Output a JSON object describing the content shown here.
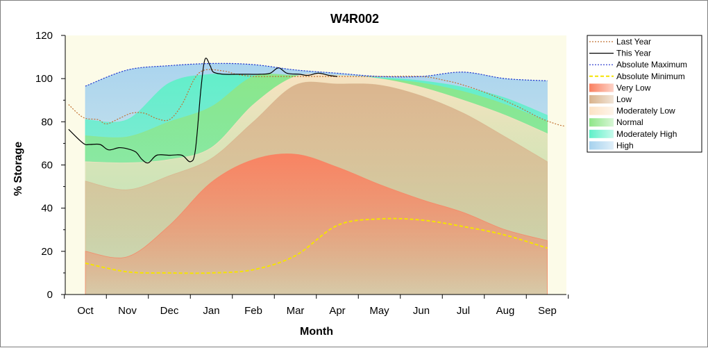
{
  "chart_data": {
    "type": "area",
    "title": "W4R002",
    "xlabel": "Month",
    "ylabel": "% Storage",
    "ylim": [
      0,
      120
    ],
    "yticks": [
      0,
      20,
      40,
      60,
      80,
      100,
      120
    ],
    "categories": [
      "Oct",
      "Nov",
      "Dec",
      "Jan",
      "Feb",
      "Mar",
      "Apr",
      "May",
      "Jun",
      "Jul",
      "Aug",
      "Sep"
    ],
    "grid": false,
    "legend_position": "right",
    "bands": [
      {
        "name": "Very Low",
        "color": "#fa8060",
        "lower": "zero",
        "upper": [
          [
            0,
            20
          ],
          [
            1,
            17.5
          ],
          [
            2,
            32
          ],
          [
            3,
            52
          ],
          [
            4,
            62.5
          ],
          [
            5,
            65
          ],
          [
            6,
            59
          ],
          [
            7,
            51
          ],
          [
            8,
            44
          ],
          [
            9,
            38
          ],
          [
            10,
            30
          ],
          [
            11,
            25
          ]
        ]
      },
      {
        "name": "Low",
        "color": "#d9b38c",
        "upper": [
          [
            0,
            52.5
          ],
          [
            1,
            48.5
          ],
          [
            2,
            55
          ],
          [
            3,
            63
          ],
          [
            4,
            80
          ],
          [
            5,
            97
          ],
          [
            6,
            97.5
          ],
          [
            7,
            97
          ],
          [
            8,
            92
          ],
          [
            9,
            84
          ],
          [
            10,
            73
          ],
          [
            11,
            61.5
          ]
        ]
      },
      {
        "name": "Moderately Low",
        "color": "#fde2c4",
        "upper": [
          [
            0,
            61.5
          ],
          [
            1,
            61
          ],
          [
            2,
            62.5
          ],
          [
            3,
            68
          ],
          [
            4,
            88
          ],
          [
            5,
            101
          ],
          [
            6,
            101.5
          ],
          [
            7,
            100
          ],
          [
            8,
            96
          ],
          [
            9,
            90
          ],
          [
            10,
            83
          ],
          [
            11,
            74.5
          ]
        ]
      },
      {
        "name": "Normal",
        "color": "#8ee688",
        "upper": [
          [
            0,
            73.5
          ],
          [
            1,
            73
          ],
          [
            2,
            80
          ],
          [
            3,
            87
          ],
          [
            4,
            101
          ],
          [
            5,
            101.5
          ],
          [
            6,
            101.5
          ],
          [
            7,
            100
          ],
          [
            8,
            98
          ],
          [
            9,
            94
          ],
          [
            10,
            88
          ],
          [
            11,
            80
          ]
        ]
      },
      {
        "name": "Moderately High",
        "color": "#5ff0c8",
        "upper": [
          [
            0,
            81
          ],
          [
            1,
            81
          ],
          [
            2,
            98
          ],
          [
            3,
            102
          ],
          [
            4,
            101.5
          ],
          [
            5,
            101.5
          ],
          [
            6,
            101.5
          ],
          [
            7,
            100.5
          ],
          [
            8,
            99
          ],
          [
            9,
            96
          ],
          [
            10,
            91
          ],
          [
            11,
            83
          ]
        ]
      },
      {
        "name": "High",
        "color": "#a6d2ee",
        "upper": [
          [
            0,
            96.5
          ],
          [
            1,
            104
          ],
          [
            2,
            106
          ],
          [
            3,
            107
          ],
          [
            4,
            106.5
          ],
          [
            5,
            104
          ],
          [
            6,
            102.5
          ],
          [
            7,
            101
          ],
          [
            8,
            101
          ],
          [
            9,
            103
          ],
          [
            10,
            100
          ],
          [
            11,
            99
          ]
        ]
      }
    ],
    "series": [
      {
        "name": "Last Year",
        "color": "#c07030",
        "style": "dotted",
        "points": [
          [
            -0.4,
            88
          ],
          [
            -0.05,
            82
          ],
          [
            0.3,
            81
          ],
          [
            0.5,
            79
          ],
          [
            0.8,
            81.5
          ],
          [
            1.1,
            84
          ],
          [
            1.4,
            84
          ],
          [
            1.7,
            81.5
          ],
          [
            2.0,
            81
          ],
          [
            2.3,
            88
          ],
          [
            2.6,
            100
          ],
          [
            2.85,
            104
          ],
          [
            3.3,
            103.5
          ],
          [
            3.6,
            102
          ],
          [
            4.0,
            101
          ],
          [
            4.5,
            101
          ],
          [
            5.0,
            101
          ],
          [
            5.5,
            101
          ],
          [
            6.0,
            101
          ],
          [
            7.0,
            101
          ],
          [
            8.0,
            101
          ],
          [
            8.6,
            99
          ],
          [
            9.0,
            97
          ],
          [
            9.6,
            93
          ],
          [
            10.3,
            87
          ],
          [
            10.8,
            82
          ],
          [
            11.2,
            79
          ],
          [
            11.4,
            78
          ]
        ]
      },
      {
        "name": "This Year",
        "color": "#000000",
        "style": "solid",
        "points": [
          [
            -0.4,
            76.5
          ],
          [
            -0.05,
            70
          ],
          [
            0.1,
            69.5
          ],
          [
            0.35,
            69.5
          ],
          [
            0.55,
            67
          ],
          [
            0.8,
            68
          ],
          [
            1.0,
            67.5
          ],
          [
            1.2,
            66
          ],
          [
            1.35,
            62.5
          ],
          [
            1.5,
            61
          ],
          [
            1.7,
            64.5
          ],
          [
            2.0,
            64.5
          ],
          [
            2.3,
            64.5
          ],
          [
            2.5,
            61.5
          ],
          [
            2.62,
            67
          ],
          [
            2.75,
            95
          ],
          [
            2.85,
            109
          ],
          [
            2.97,
            106
          ],
          [
            3.05,
            103
          ],
          [
            3.3,
            102
          ],
          [
            3.6,
            102
          ],
          [
            3.9,
            102
          ],
          [
            4.15,
            102
          ],
          [
            4.4,
            102.5
          ],
          [
            4.6,
            105
          ],
          [
            4.8,
            102.5
          ],
          [
            5.1,
            102
          ],
          [
            5.3,
            101.5
          ],
          [
            5.55,
            102.5
          ],
          [
            5.8,
            101.5
          ],
          [
            6.0,
            101
          ]
        ]
      },
      {
        "name": "Absolute Maximum",
        "color": "#1f2fcc",
        "style": "dotted",
        "points": [
          [
            0,
            96.5
          ],
          [
            1,
            104
          ],
          [
            2,
            106
          ],
          [
            3,
            107
          ],
          [
            4,
            106.5
          ],
          [
            5,
            104
          ],
          [
            6,
            102.5
          ],
          [
            7,
            101
          ],
          [
            8,
            101
          ],
          [
            9,
            103
          ],
          [
            10,
            100
          ],
          [
            11,
            99
          ]
        ]
      },
      {
        "name": "Absolute Minimum",
        "color": "#f5e400",
        "style": "dashed",
        "points": [
          [
            0,
            14.5
          ],
          [
            1,
            10.5
          ],
          [
            2,
            10
          ],
          [
            3,
            10
          ],
          [
            4,
            11.5
          ],
          [
            5,
            18
          ],
          [
            6,
            32
          ],
          [
            7,
            35
          ],
          [
            8,
            34.5
          ],
          [
            9,
            31.5
          ],
          [
            10,
            27.5
          ],
          [
            11,
            21.5
          ]
        ]
      }
    ],
    "legend": [
      "Last Year",
      "This Year",
      "Absolute Maximum",
      "Absolute Minimum",
      "Very Low",
      "Low",
      "Moderately Low",
      "Normal",
      "Moderately High",
      "High"
    ]
  }
}
